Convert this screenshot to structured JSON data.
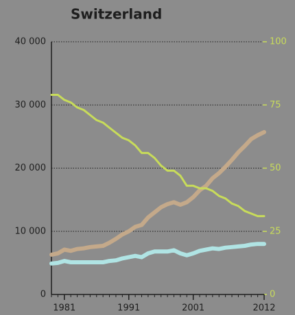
{
  "chart_data": {
    "type": "line",
    "title": "Switzerland",
    "x": [
      1979,
      1980,
      1981,
      1982,
      1983,
      1984,
      1985,
      1986,
      1987,
      1988,
      1989,
      1990,
      1991,
      1992,
      1993,
      1994,
      1995,
      1996,
      1997,
      1998,
      1999,
      2000,
      2001,
      2002,
      2003,
      2004,
      2005,
      2006,
      2007,
      2008,
      2009,
      2010,
      2011,
      2012
    ],
    "xlim": [
      1979,
      2012
    ],
    "xticks": [
      1981,
      1991,
      2001,
      2012
    ],
    "ylim": [
      0,
      40000
    ],
    "yticks": [
      0,
      {
        "value": 10000,
        "label": "10 000"
      },
      {
        "value": 20000,
        "label": "20 000"
      },
      {
        "value": 30000,
        "label": "30 000"
      },
      {
        "value": 40000,
        "label": "40 000"
      }
    ],
    "y2lim": [
      0,
      100
    ],
    "y2ticks": [
      0,
      25,
      50,
      75,
      100
    ],
    "grid": true,
    "series": [
      {
        "color": "#c4a98a",
        "values": [
          6300,
          6500,
          7100,
          6900,
          7200,
          7300,
          7500,
          7600,
          7700,
          8200,
          8800,
          9500,
          10000,
          10700,
          11000,
          12200,
          13000,
          13800,
          14300,
          14600,
          14200,
          14600,
          15400,
          16500,
          17200,
          18400,
          19200,
          20200,
          21300,
          22500,
          23500,
          24600,
          25200,
          25700
        ]
      },
      {
        "color": "#b0e4e4",
        "values": [
          4900,
          5000,
          5300,
          5100,
          5100,
          5100,
          5100,
          5100,
          5100,
          5300,
          5400,
          5700,
          5900,
          6100,
          5900,
          6500,
          6800,
          6800,
          6800,
          7000,
          6500,
          6200,
          6500,
          6900,
          7100,
          7300,
          7200,
          7400,
          7500,
          7600,
          7700,
          7900,
          8000,
          8000
        ]
      },
      {
        "color": "#c8dc5a",
        "axis": "y2",
        "values": [
          79,
          79,
          77,
          76,
          74,
          73,
          71,
          69,
          68,
          66,
          64,
          62,
          61,
          59,
          56,
          56,
          54,
          51,
          49,
          49,
          47,
          43,
          43,
          42,
          42,
          41,
          39,
          38,
          36,
          35,
          33,
          32,
          31,
          31
        ]
      }
    ]
  }
}
